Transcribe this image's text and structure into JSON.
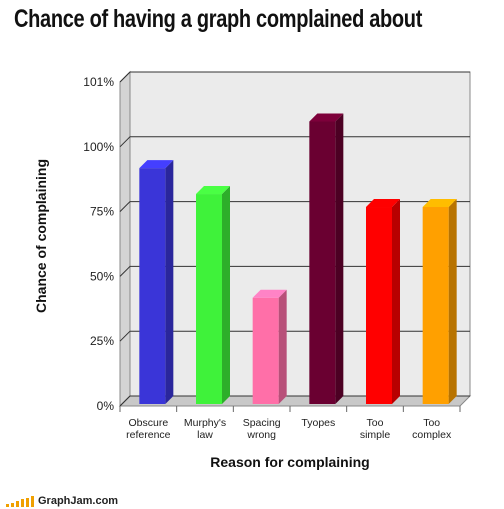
{
  "chart_data": {
    "type": "bar",
    "title": "Chance of having a graph complained about",
    "xlabel": "Reason for complaining",
    "ylabel": "Chance of complaining",
    "categories": [
      "Obscure\nreference",
      "Murphy's\nlaw",
      "Spacing\nwrong",
      "Tyopes",
      "Too\nsimple",
      "Too\ncomplex"
    ],
    "values": [
      91,
      81,
      41,
      109,
      76,
      76
    ],
    "colors": [
      "#3a35d8",
      "#3ff23a",
      "#ff6fa8",
      "#6a0031",
      "#ff0000",
      "#ffa000"
    ],
    "yticks": [
      "0%",
      "25%",
      "50%",
      "75%",
      "100%",
      "101%"
    ],
    "ylim": [
      0,
      125
    ],
    "grid": true,
    "legend": "none",
    "style": "3d"
  },
  "watermark": {
    "text": "GraphJam.com",
    "bar_levels": [
      0.25,
      0.4,
      0.55,
      0.7,
      0.85,
      1.0
    ],
    "color": "#f0a000"
  }
}
